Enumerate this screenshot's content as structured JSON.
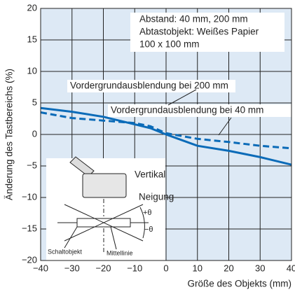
{
  "chart_data": {
    "type": "line",
    "x_label": "Größe des Objekts (mm)",
    "y_label": "Änderung des Tastbereichs (%)",
    "xlim": [
      -40,
      40
    ],
    "ylim": [
      -20,
      20
    ],
    "xticks": [
      {
        "value": -40,
        "label": "−40"
      },
      {
        "value": -30,
        "label": "−30"
      },
      {
        "value": -20,
        "label": "−20"
      },
      {
        "value": -10,
        "label": "−10"
      },
      0,
      10,
      20,
      30,
      40
    ],
    "yticks": [
      {
        "value": -20,
        "label": "−20"
      },
      {
        "value": -15,
        "label": "−15"
      },
      {
        "value": -10,
        "label": "−10"
      },
      {
        "value": -5,
        "label": "−5"
      },
      0,
      5,
      10,
      15,
      20
    ],
    "grid": true,
    "x": [
      -40,
      -30,
      -20,
      -10,
      -5,
      0,
      10,
      20,
      30,
      40
    ],
    "series": [
      {
        "name": "Vordergrundausblendung bei 200 mm",
        "color": "#0b6bb8",
        "dash": false,
        "values": [
          4.2,
          3.6,
          2.8,
          1.6,
          1.0,
          0.0,
          -1.8,
          -2.6,
          -3.6,
          -4.8
        ]
      },
      {
        "name": "Vordergrundausblendung bei 40 mm",
        "color": "#0b6bb8",
        "dash": true,
        "values": [
          3.5,
          2.6,
          2.2,
          1.8,
          1.3,
          0.2,
          -0.7,
          -1.2,
          -1.8,
          -2.2
        ]
      }
    ],
    "annotations": [
      "Abstand: 40 mm, 200 mm",
      "Abtastobjekt: Weißes Papier",
      "100 x 100 mm"
    ],
    "diagram_labels": [
      "Vertikal",
      "Neigung",
      "+θ",
      "−θ",
      "Schaltobjekt",
      "Mittellinie"
    ]
  }
}
